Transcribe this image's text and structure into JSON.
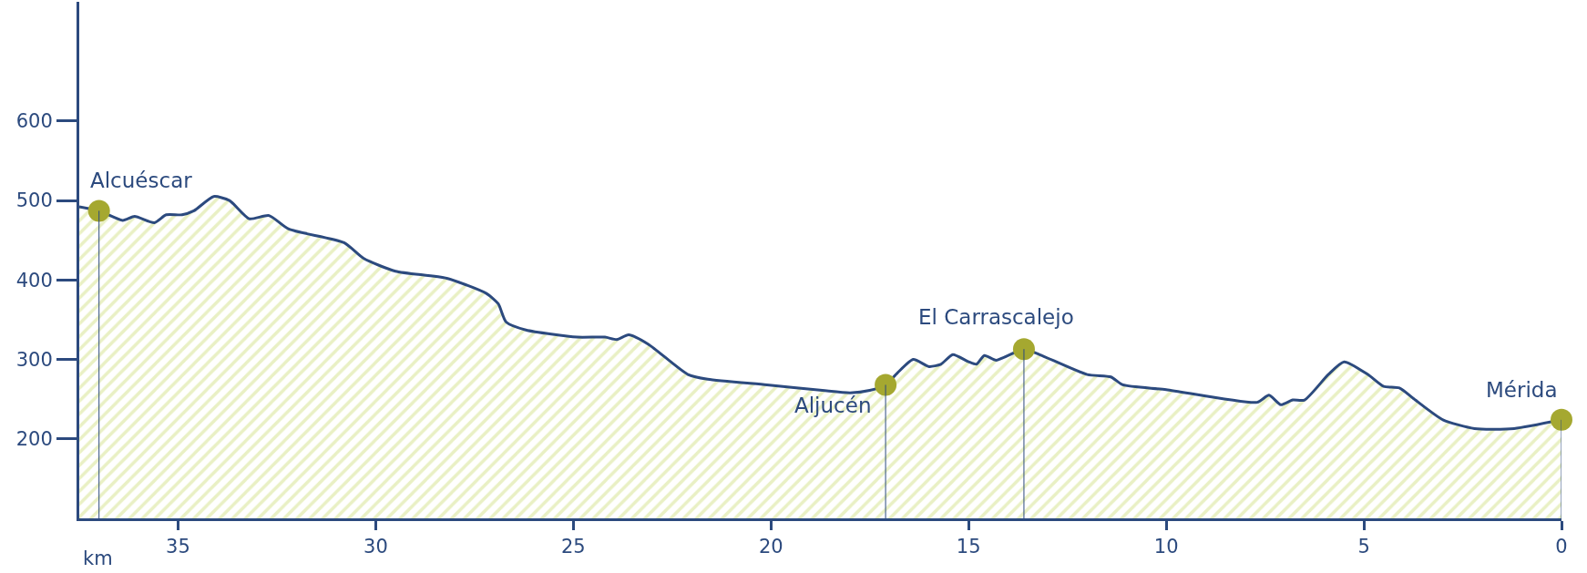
{
  "chart_data": {
    "type": "area",
    "xlabel": "km",
    "xlim": [
      37.5,
      0
    ],
    "xticks": [
      35,
      30,
      25,
      20,
      15,
      10,
      5,
      0
    ],
    "ylim": [
      100,
      750
    ],
    "yticks": [
      200,
      300,
      400,
      500,
      600
    ],
    "line_style": "solid",
    "series": [
      {
        "color": "#d4e28a",
        "x": [
          37.5,
          37.0,
          36.4,
          36.1,
          35.6,
          35.3,
          34.9,
          34.6,
          34.1,
          33.7,
          33.2,
          32.7,
          32.2,
          30.8,
          30.3,
          29.5,
          28.2,
          27.2,
          26.9,
          26.7,
          26.2,
          24.9,
          24.2,
          23.9,
          23.6,
          23.1,
          22.1,
          21.6,
          20.1,
          18.7,
          18.0,
          17.5,
          17.1,
          16.8,
          16.4,
          16.0,
          15.7,
          15.4,
          15.0,
          14.8,
          14.6,
          14.3,
          13.6,
          13.2,
          12.0,
          11.4,
          11.1,
          10.0,
          7.7,
          7.4,
          7.1,
          6.8,
          6.5,
          5.9,
          5.5,
          4.9,
          4.5,
          4.1,
          3.7,
          3.0,
          2.2,
          1.2,
          0
        ],
        "values": [
          492,
          487,
          475,
          480,
          472,
          482,
          482,
          487,
          505,
          500,
          477,
          481,
          464,
          447,
          427,
          411,
          402,
          383,
          370,
          347,
          337,
          328,
          328,
          325,
          331,
          319,
          281,
          275,
          268,
          261,
          258,
          261,
          268,
          283,
          300,
          291,
          294,
          306,
          297,
          294,
          305,
          299,
          313,
          306,
          281,
          278,
          268,
          262,
          246,
          255,
          243,
          249,
          249,
          281,
          297,
          281,
          266,
          264,
          249,
          224,
          213,
          213,
          224
        ]
      },
      {
        "type": "scatter",
        "color": "#a5a830",
        "marker": "circle",
        "x": [
          37.0,
          17.1,
          13.6,
          0
        ],
        "values": [
          487,
          268,
          313,
          224
        ]
      }
    ],
    "annotations": [
      {
        "text": "Alcuéscar",
        "x": 37.0,
        "y": 487
      },
      {
        "text": "Aljucén",
        "x": 17.1,
        "y": 268
      },
      {
        "text": "El Carrascalejo",
        "x": 13.6,
        "y": 313
      },
      {
        "text": "Mérida",
        "x": 0,
        "y": 224
      }
    ]
  }
}
